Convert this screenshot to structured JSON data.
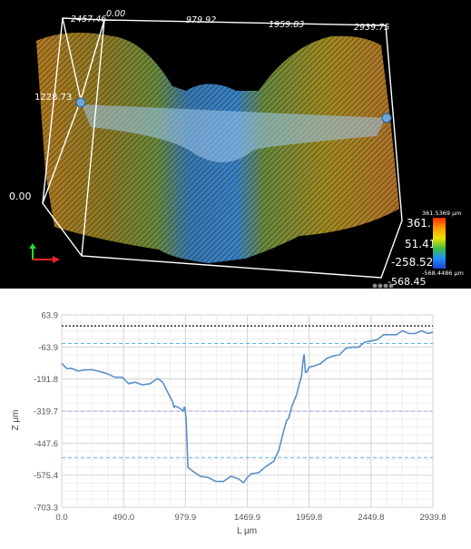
{
  "viewer": {
    "top_ticks": [
      "2457.46",
      "0.00",
      "979.92",
      "1959.83",
      "2939.75"
    ],
    "left_ticks": [
      "1228.73",
      "0.00"
    ],
    "right_ticks": [
      "361.",
      "51.41",
      "-258.52",
      "-568.45"
    ],
    "colorbar": {
      "max_label": "361.5369 μm",
      "min_label": "-568.4486 μm",
      "colors": [
        "#ff2a00",
        "#ff9a00",
        "#f0e000",
        "#40c040",
        "#1f8fff",
        "#2040d0"
      ]
    },
    "menu_dots_icon": "more-dots-icon",
    "axis_gizmo_icon": "xyz-axes-icon"
  },
  "chart_data": {
    "type": "line",
    "xlabel": "L μm",
    "ylabel": "Z μm",
    "xlim": [
      0,
      2939.8
    ],
    "ylim": [
      -703.3,
      63.9
    ],
    "x_ticks": [
      "0.0",
      "490.0",
      "979.9",
      "1469.9",
      "1959.8",
      "2449.8",
      "2939.8"
    ],
    "y_ticks": [
      "63.9",
      "-63.9",
      "-191.8",
      "-319.7",
      "-447.6",
      "-575.4",
      "-703.3"
    ],
    "reference_lines": [
      {
        "value": 20,
        "color": "#000000",
        "style": "dotted"
      },
      {
        "value": -50,
        "color": "#5ab4e6",
        "style": "dashed"
      },
      {
        "value": -320,
        "color": "#b79be8",
        "style": "dashed"
      },
      {
        "value": -505,
        "color": "#5ab4e6",
        "style": "dashed"
      }
    ],
    "series": [
      {
        "color": "#5b8fc8",
        "x": [
          0,
          40,
          80,
          130,
          180,
          240,
          300,
          360,
          420,
          480,
          530,
          580,
          640,
          700,
          760,
          800,
          840,
          870,
          880,
          890,
          900,
          940,
          960,
          970,
          975,
          985,
          1000,
          1040,
          1100,
          1160,
          1220,
          1280,
          1340,
          1400,
          1440,
          1470,
          1500,
          1560,
          1620,
          1680,
          1720,
          1760,
          1780,
          1800,
          1820,
          1840,
          1860,
          1880,
          1900,
          1910,
          1920,
          1930,
          1940,
          1960,
          2000,
          2050,
          2100,
          2150,
          2200,
          2250,
          2300,
          2350,
          2400,
          2450,
          2500,
          2550,
          2600,
          2650,
          2700,
          2750,
          2800,
          2850,
          2900,
          2939.8
        ],
        "y": [
          -130,
          -145,
          -155,
          -160,
          -150,
          -160,
          -162,
          -165,
          -190,
          -185,
          -205,
          -210,
          -215,
          -205,
          -195,
          -205,
          -240,
          -280,
          -285,
          -300,
          -305,
          -310,
          -315,
          -310,
          -305,
          -340,
          -550,
          -560,
          -575,
          -590,
          -600,
          -595,
          -585,
          -590,
          -600,
          -590,
          -570,
          -560,
          -545,
          -520,
          -470,
          -400,
          -360,
          -340,
          -310,
          -280,
          -250,
          -220,
          -180,
          -120,
          -100,
          -165,
          -160,
          -150,
          -140,
          -125,
          -115,
          -100,
          -90,
          -75,
          -65,
          -60,
          -50,
          -40,
          -30,
          -20,
          -15,
          -10,
          -5,
          -10,
          -5,
          -5,
          -10,
          0
        ]
      }
    ]
  }
}
